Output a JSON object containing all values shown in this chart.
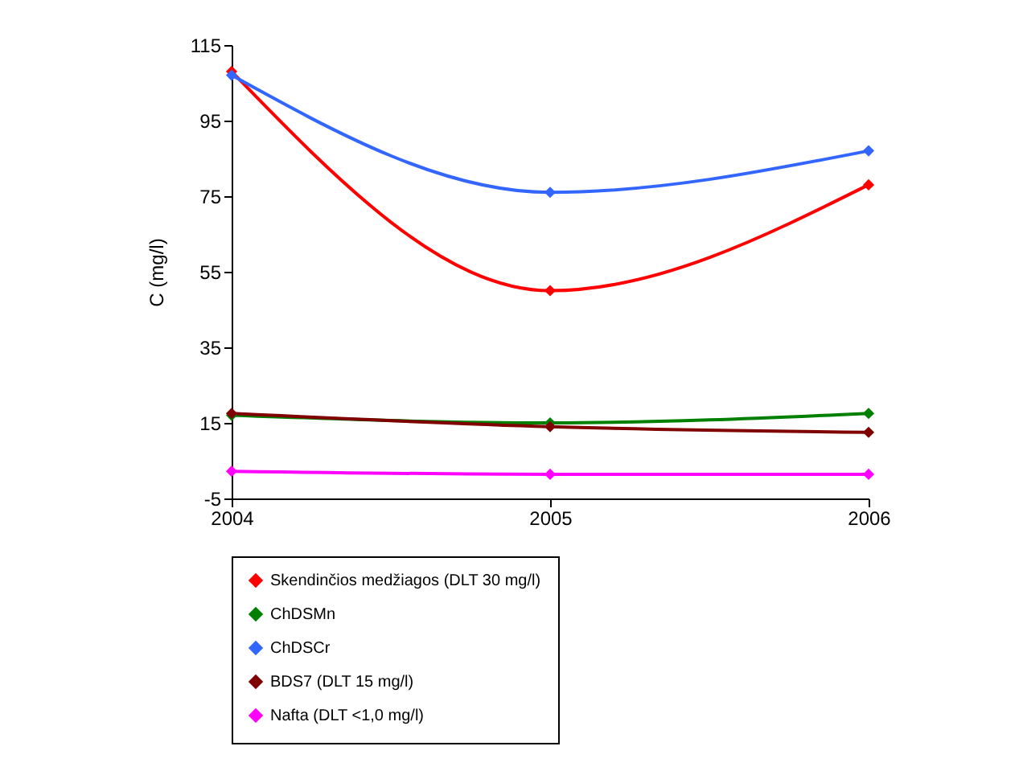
{
  "chart_data": {
    "type": "line",
    "ylabel": "C (mg/l)",
    "categories": [
      "2004",
      "2005",
      "2006"
    ],
    "ylim": [
      -5,
      115
    ],
    "yticks": [
      -5,
      15,
      35,
      55,
      75,
      95,
      115
    ],
    "series": [
      {
        "name": "Skendinčios medžiagos (DLT 30 mg/l)",
        "color": "#ff0000",
        "values": [
          108,
          50,
          78
        ]
      },
      {
        "name": "ChDSMn",
        "color": "#008000",
        "values": [
          17,
          15,
          17.5
        ]
      },
      {
        "name": "ChDSCr",
        "color": "#3366ff",
        "values": [
          107,
          76,
          87
        ]
      },
      {
        "name": "BDS7 (DLT 15 mg/l)",
        "color": "#800000",
        "values": [
          17.5,
          14,
          12.5
        ]
      },
      {
        "name": "Nafta (DLT <1,0 mg/l)",
        "color": "#ff00ff",
        "values": [
          2.2,
          1.4,
          1.4
        ]
      }
    ],
    "grid": false,
    "legend": "bottom",
    "marker": "diamond",
    "line_style": "solid"
  }
}
